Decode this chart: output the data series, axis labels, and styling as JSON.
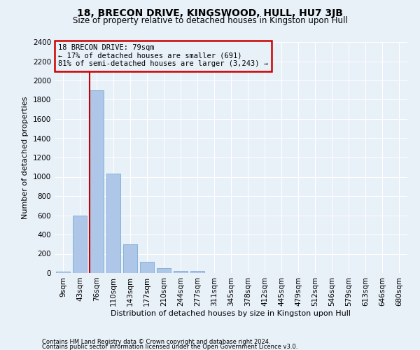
{
  "title": "18, BRECON DRIVE, KINGSWOOD, HULL, HU7 3JB",
  "subtitle": "Size of property relative to detached houses in Kingston upon Hull",
  "xlabel": "Distribution of detached houses by size in Kingston upon Hull",
  "ylabel": "Number of detached properties",
  "footer1": "Contains HM Land Registry data © Crown copyright and database right 2024.",
  "footer2": "Contains public sector information licensed under the Open Government Licence v3.0.",
  "bar_labels": [
    "9sqm",
    "43sqm",
    "76sqm",
    "110sqm",
    "143sqm",
    "177sqm",
    "210sqm",
    "244sqm",
    "277sqm",
    "311sqm",
    "345sqm",
    "378sqm",
    "412sqm",
    "445sqm",
    "479sqm",
    "512sqm",
    "546sqm",
    "579sqm",
    "613sqm",
    "646sqm",
    "680sqm"
  ],
  "bar_values": [
    15,
    600,
    1900,
    1030,
    295,
    115,
    48,
    25,
    22,
    0,
    0,
    0,
    0,
    0,
    0,
    0,
    0,
    0,
    0,
    0,
    0
  ],
  "bar_color": "#aec6e8",
  "bar_edge_color": "#7aadd4",
  "highlight_bar_index": 2,
  "highlight_color": "#cc0000",
  "ylim": [
    0,
    2400
  ],
  "yticks": [
    0,
    200,
    400,
    600,
    800,
    1000,
    1200,
    1400,
    1600,
    1800,
    2000,
    2200,
    2400
  ],
  "annotation_title": "18 BRECON DRIVE: 79sqm",
  "annotation_line1": "← 17% of detached houses are smaller (691)",
  "annotation_line2": "81% of semi-detached houses are larger (3,243) →",
  "annotation_box_color": "#cc0000",
  "background_color": "#e8f0f8",
  "grid_color": "#ffffff",
  "title_fontsize": 10,
  "subtitle_fontsize": 8.5,
  "ylabel_fontsize": 8,
  "xlabel_fontsize": 8,
  "tick_fontsize": 7.5,
  "ann_fontsize": 7.5,
  "footer_fontsize": 6
}
